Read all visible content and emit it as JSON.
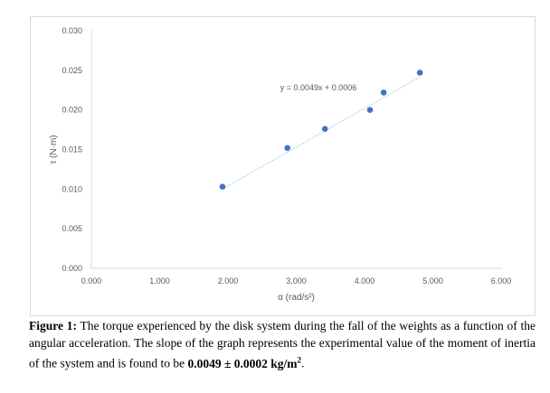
{
  "chart_data": {
    "type": "scatter",
    "xlabel": "α (rad/s²)",
    "ylabel": "τ (N·m)",
    "xlim": [
      0,
      6
    ],
    "ylim": [
      0,
      0.03
    ],
    "xticks": [
      "0.000",
      "1.000",
      "2.000",
      "3.000",
      "4.000",
      "5.000",
      "6.000"
    ],
    "yticks": [
      "0.000",
      "0.005",
      "0.010",
      "0.015",
      "0.020",
      "0.025",
      "0.030"
    ],
    "grid": false,
    "points": [
      {
        "x": 1.92,
        "y": 0.0103
      },
      {
        "x": 2.87,
        "y": 0.0152
      },
      {
        "x": 3.42,
        "y": 0.0176
      },
      {
        "x": 4.08,
        "y": 0.02
      },
      {
        "x": 4.28,
        "y": 0.0222
      },
      {
        "x": 4.81,
        "y": 0.0247
      }
    ],
    "trendline": {
      "type": "linear",
      "slope": 0.0049,
      "intercept": 0.0006,
      "equation": "y = 0.0049x + 0.0006",
      "style": "dotted"
    },
    "colors": {
      "marker": "#4472c4",
      "trendline": "#9dc3e6"
    }
  },
  "caption": {
    "label": "Figure 1:",
    "text": " The torque experienced by the disk system during the fall of the weights as a function of the angular acceleration. The slope of the graph represents the experimental value of the moment of inertia of the system and is found to be ",
    "value": "0.0049 ± 0.0002 kg/m",
    "value_sup": "2",
    "end": "."
  }
}
